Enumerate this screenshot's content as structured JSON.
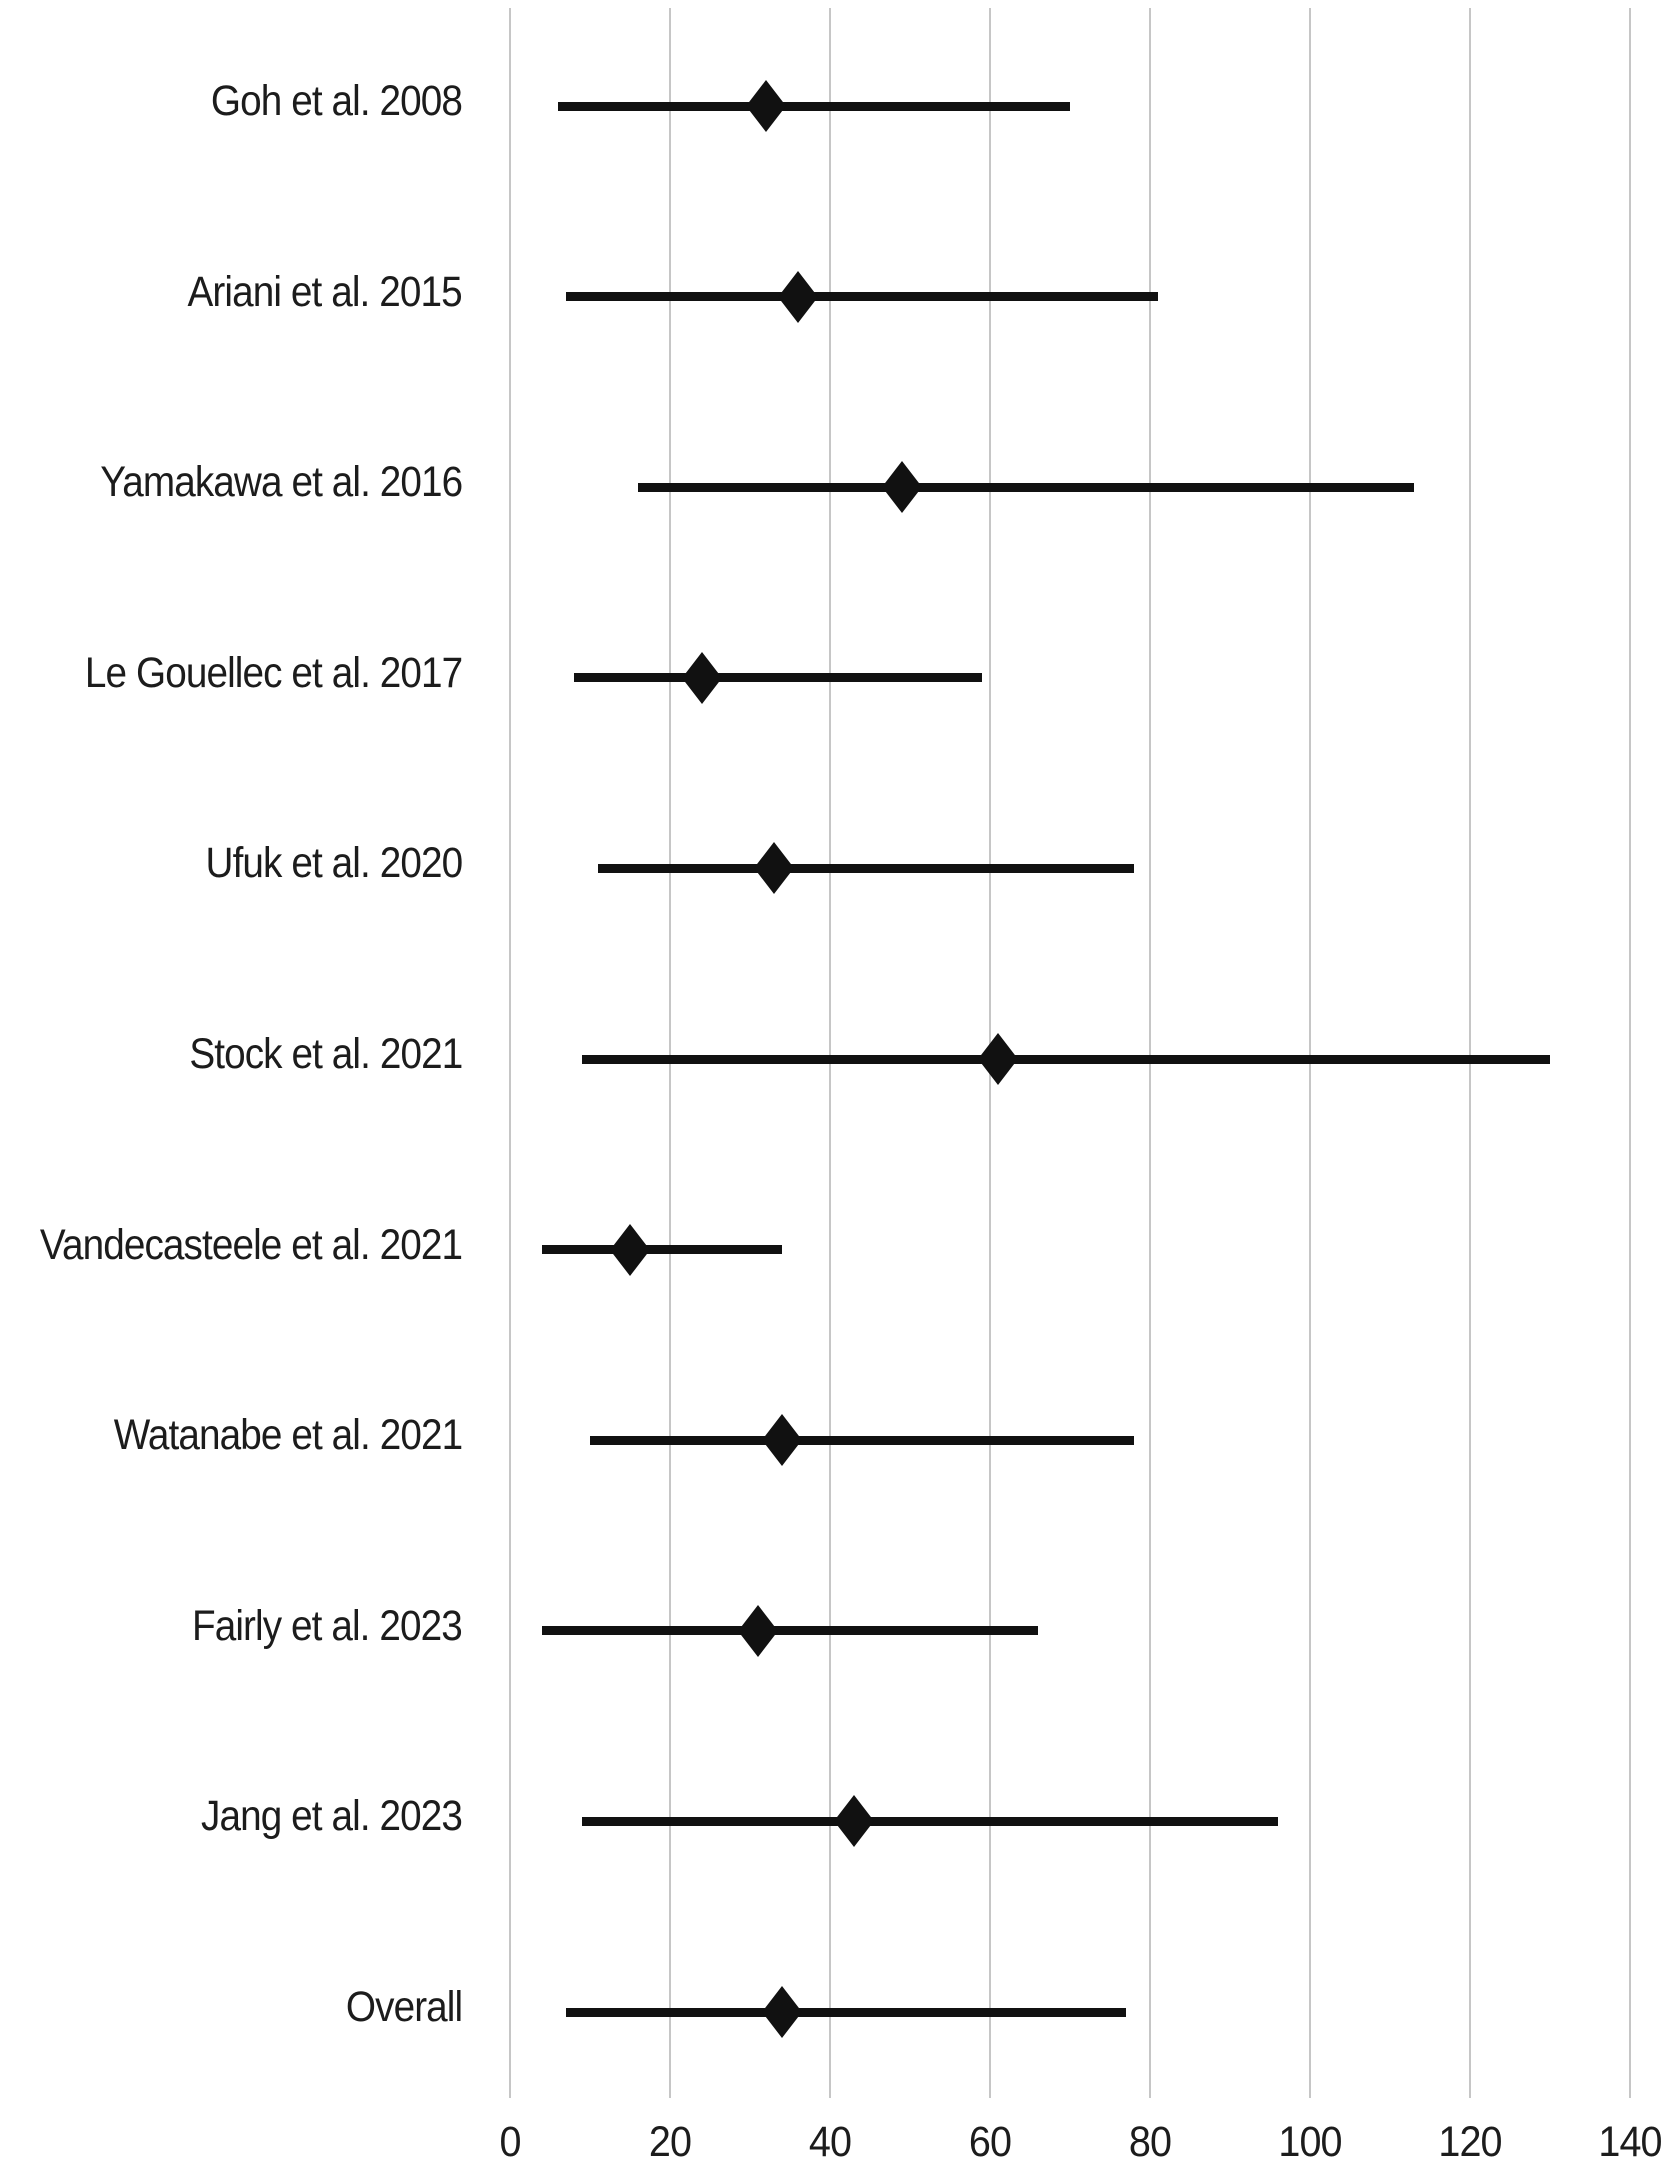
{
  "chart_data": {
    "type": "scatter",
    "subtype": "forest-plot",
    "title": "",
    "xlabel": "",
    "ylabel": "",
    "grid": "vertical-gridlines-on",
    "legend": "none",
    "marker_shape": "diamond",
    "x_axis": {
      "min": 0,
      "max": 140,
      "ticks": [
        0,
        20,
        40,
        60,
        80,
        100,
        120,
        140
      ]
    },
    "series": [
      {
        "label": "Goh et al. 2008",
        "estimate": 32,
        "ci_low": 6,
        "ci_high": 70
      },
      {
        "label": "Ariani et al. 2015",
        "estimate": 36,
        "ci_low": 7,
        "ci_high": 81
      },
      {
        "label": "Yamakawa et al. 2016",
        "estimate": 49,
        "ci_low": 16,
        "ci_high": 113
      },
      {
        "label": "Le Gouellec et al. 2017",
        "estimate": 24,
        "ci_low": 8,
        "ci_high": 59
      },
      {
        "label": "Ufuk et al. 2020",
        "estimate": 33,
        "ci_low": 11,
        "ci_high": 78
      },
      {
        "label": "Stock et al. 2021",
        "estimate": 61,
        "ci_low": 9,
        "ci_high": 130
      },
      {
        "label": "Vandecasteele et al. 2021",
        "estimate": 15,
        "ci_low": 4,
        "ci_high": 34
      },
      {
        "label": "Watanabe et al. 2021",
        "estimate": 34,
        "ci_low": 10,
        "ci_high": 78
      },
      {
        "label": "Fairly et al. 2023",
        "estimate": 31,
        "ci_low": 4,
        "ci_high": 66
      },
      {
        "label": "Jang et al. 2023",
        "estimate": 43,
        "ci_low": 9,
        "ci_high": 96
      },
      {
        "label": "Overall",
        "estimate": 34,
        "ci_low": 7,
        "ci_high": 77
      }
    ],
    "colors": {
      "marker": "#111111",
      "ci_line": "#111111",
      "gridline": "#c6c6c6",
      "text": "#1c1c1c",
      "background": "#ffffff"
    }
  }
}
